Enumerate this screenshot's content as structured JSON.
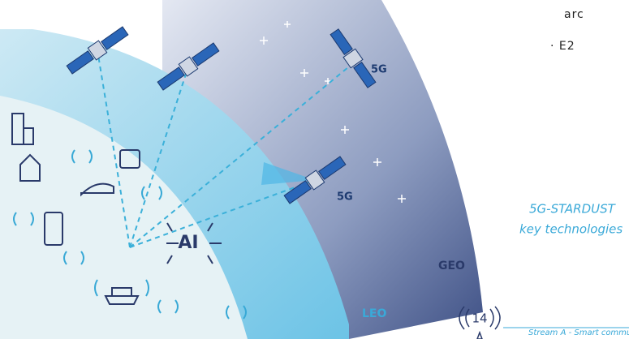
{
  "document": {
    "top_text": [
      "arc",
      "· E2"
    ],
    "satellite_labels": [
      "5G",
      "5G"
    ],
    "orbit_labels": [
      "GEO",
      "LEO"
    ],
    "ai_label": "AI",
    "caption": [
      "5G-STARDUST",
      "key technologies"
    ],
    "page_number": "14",
    "footer": "Stream A - Smart commu"
  }
}
